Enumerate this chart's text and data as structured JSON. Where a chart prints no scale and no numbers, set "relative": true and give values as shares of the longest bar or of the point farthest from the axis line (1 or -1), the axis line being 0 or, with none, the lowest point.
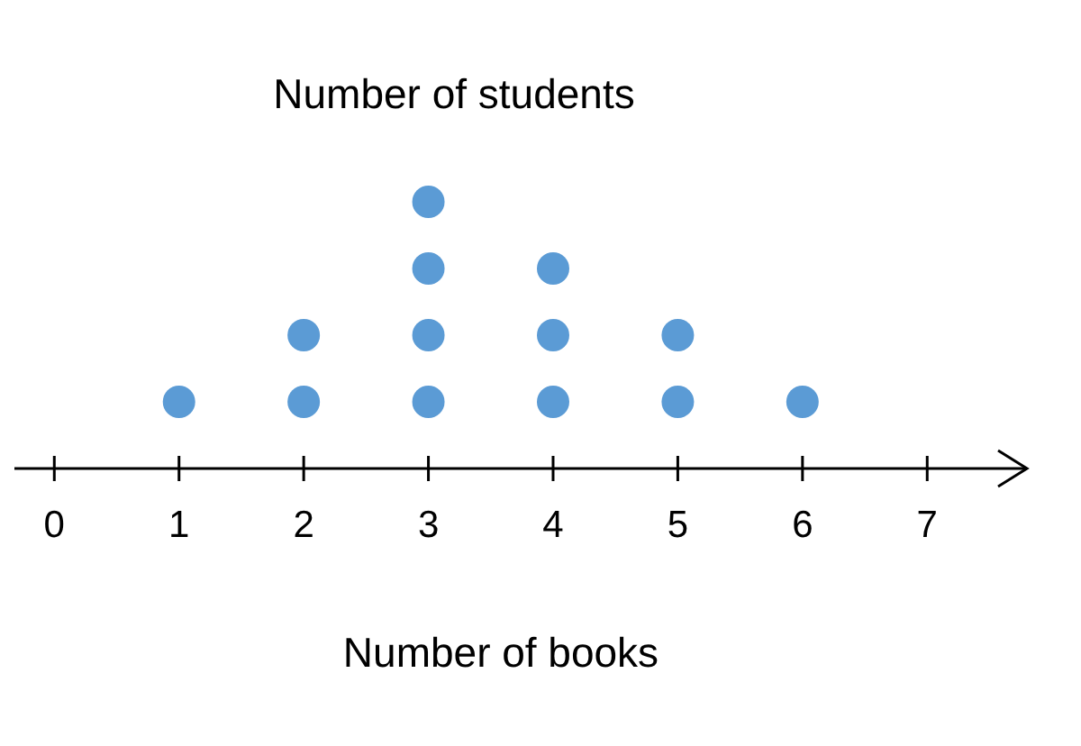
{
  "chart_data": {
    "type": "scatter",
    "title": "Number of students",
    "xlabel": "Number of books",
    "relative": true,
    "marker": "circle",
    "xlim": [
      -0.32,
      7.8
    ],
    "xticks": [
      0,
      1,
      2,
      3,
      4,
      5,
      6,
      7
    ],
    "grid": false,
    "series": [
      {
        "color": "#5b9bd5",
        "x": [
          1,
          2,
          2,
          3,
          3,
          3,
          3,
          4,
          4,
          4,
          5,
          5,
          6
        ],
        "values": [
          0.25,
          0.25,
          0.5,
          0.25,
          0.5,
          0.75,
          1,
          0.25,
          0.5,
          0.75,
          0.25,
          0.5,
          0.25
        ]
      }
    ]
  }
}
